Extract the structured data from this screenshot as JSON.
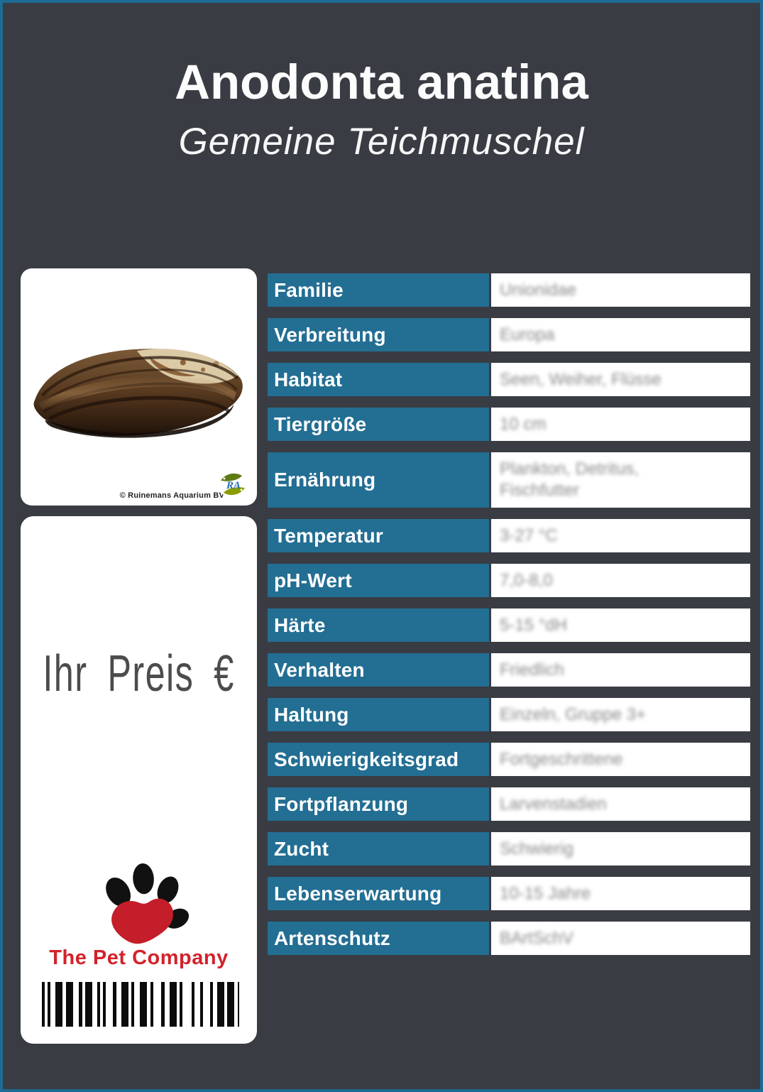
{
  "page": {
    "title": "Anodonta anatina",
    "subtitle": "Gemeine Teichmuschel",
    "colors": {
      "background": "#393c43",
      "border_blue": "#1e6b94",
      "cell_blue": "#236e93",
      "brand_red": "#d2222b",
      "price_gray": "#4c4c4c"
    }
  },
  "photo_card": {
    "credit": "© Ruinemans Aquarium BV",
    "logo_letters": "RA"
  },
  "price_card": {
    "price_label": "Ihr Preis €",
    "company_name": "The Pet Company",
    "barcode_pattern": [
      4,
      4,
      4,
      7,
      10,
      5,
      10,
      8,
      5,
      4,
      10,
      7,
      4,
      4,
      4,
      10,
      5,
      7,
      10,
      4,
      4,
      8,
      10,
      5,
      4,
      11,
      5,
      7,
      10,
      4,
      4,
      13,
      4,
      8,
      4,
      10,
      4,
      6,
      10,
      4,
      10,
      5,
      5
    ]
  },
  "table": {
    "rows": [
      {
        "label": "Familie",
        "value": "Unionidae",
        "tall": false
      },
      {
        "label": "Verbreitung",
        "value": "Europa",
        "tall": false
      },
      {
        "label": "Habitat",
        "value": "Seen, Weiher, Flüsse",
        "tall": false
      },
      {
        "label": "Tiergröße",
        "value": "10 cm",
        "tall": false
      },
      {
        "label": "Ernährung",
        "value": "Plankton, Detritus, Fischfutter",
        "tall": true
      },
      {
        "label": "Temperatur",
        "value": "3-27 °C",
        "tall": false
      },
      {
        "label": "pH-Wert",
        "value": "7,0-8,0",
        "tall": false
      },
      {
        "label": "Härte",
        "value": "5-15 °dH",
        "tall": false
      },
      {
        "label": "Verhalten",
        "value": "Friedlich",
        "tall": false
      },
      {
        "label": "Haltung",
        "value": "Einzeln, Gruppe 3+",
        "tall": false
      },
      {
        "label": "Schwierigkeitsgrad",
        "value": "Fortgeschrittene",
        "tall": false
      },
      {
        "label": "Fortpflanzung",
        "value": "Larvenstadien",
        "tall": false
      },
      {
        "label": "Zucht",
        "value": "Schwierig",
        "tall": false
      },
      {
        "label": "Lebenserwartung",
        "value": "10-15 Jahre",
        "tall": false
      },
      {
        "label": "Artenschutz",
        "value": "BArtSchV",
        "tall": false
      }
    ]
  }
}
